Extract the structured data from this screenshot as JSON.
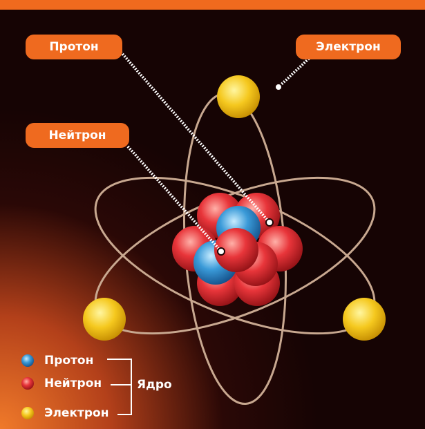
{
  "callouts": [
    "Протон",
    "Электрон",
    "Нейтрон"
  ],
  "legend": {
    "items": [
      "Протон",
      "Нейтрон",
      "Электрон"
    ],
    "group": "Ядро"
  }
}
